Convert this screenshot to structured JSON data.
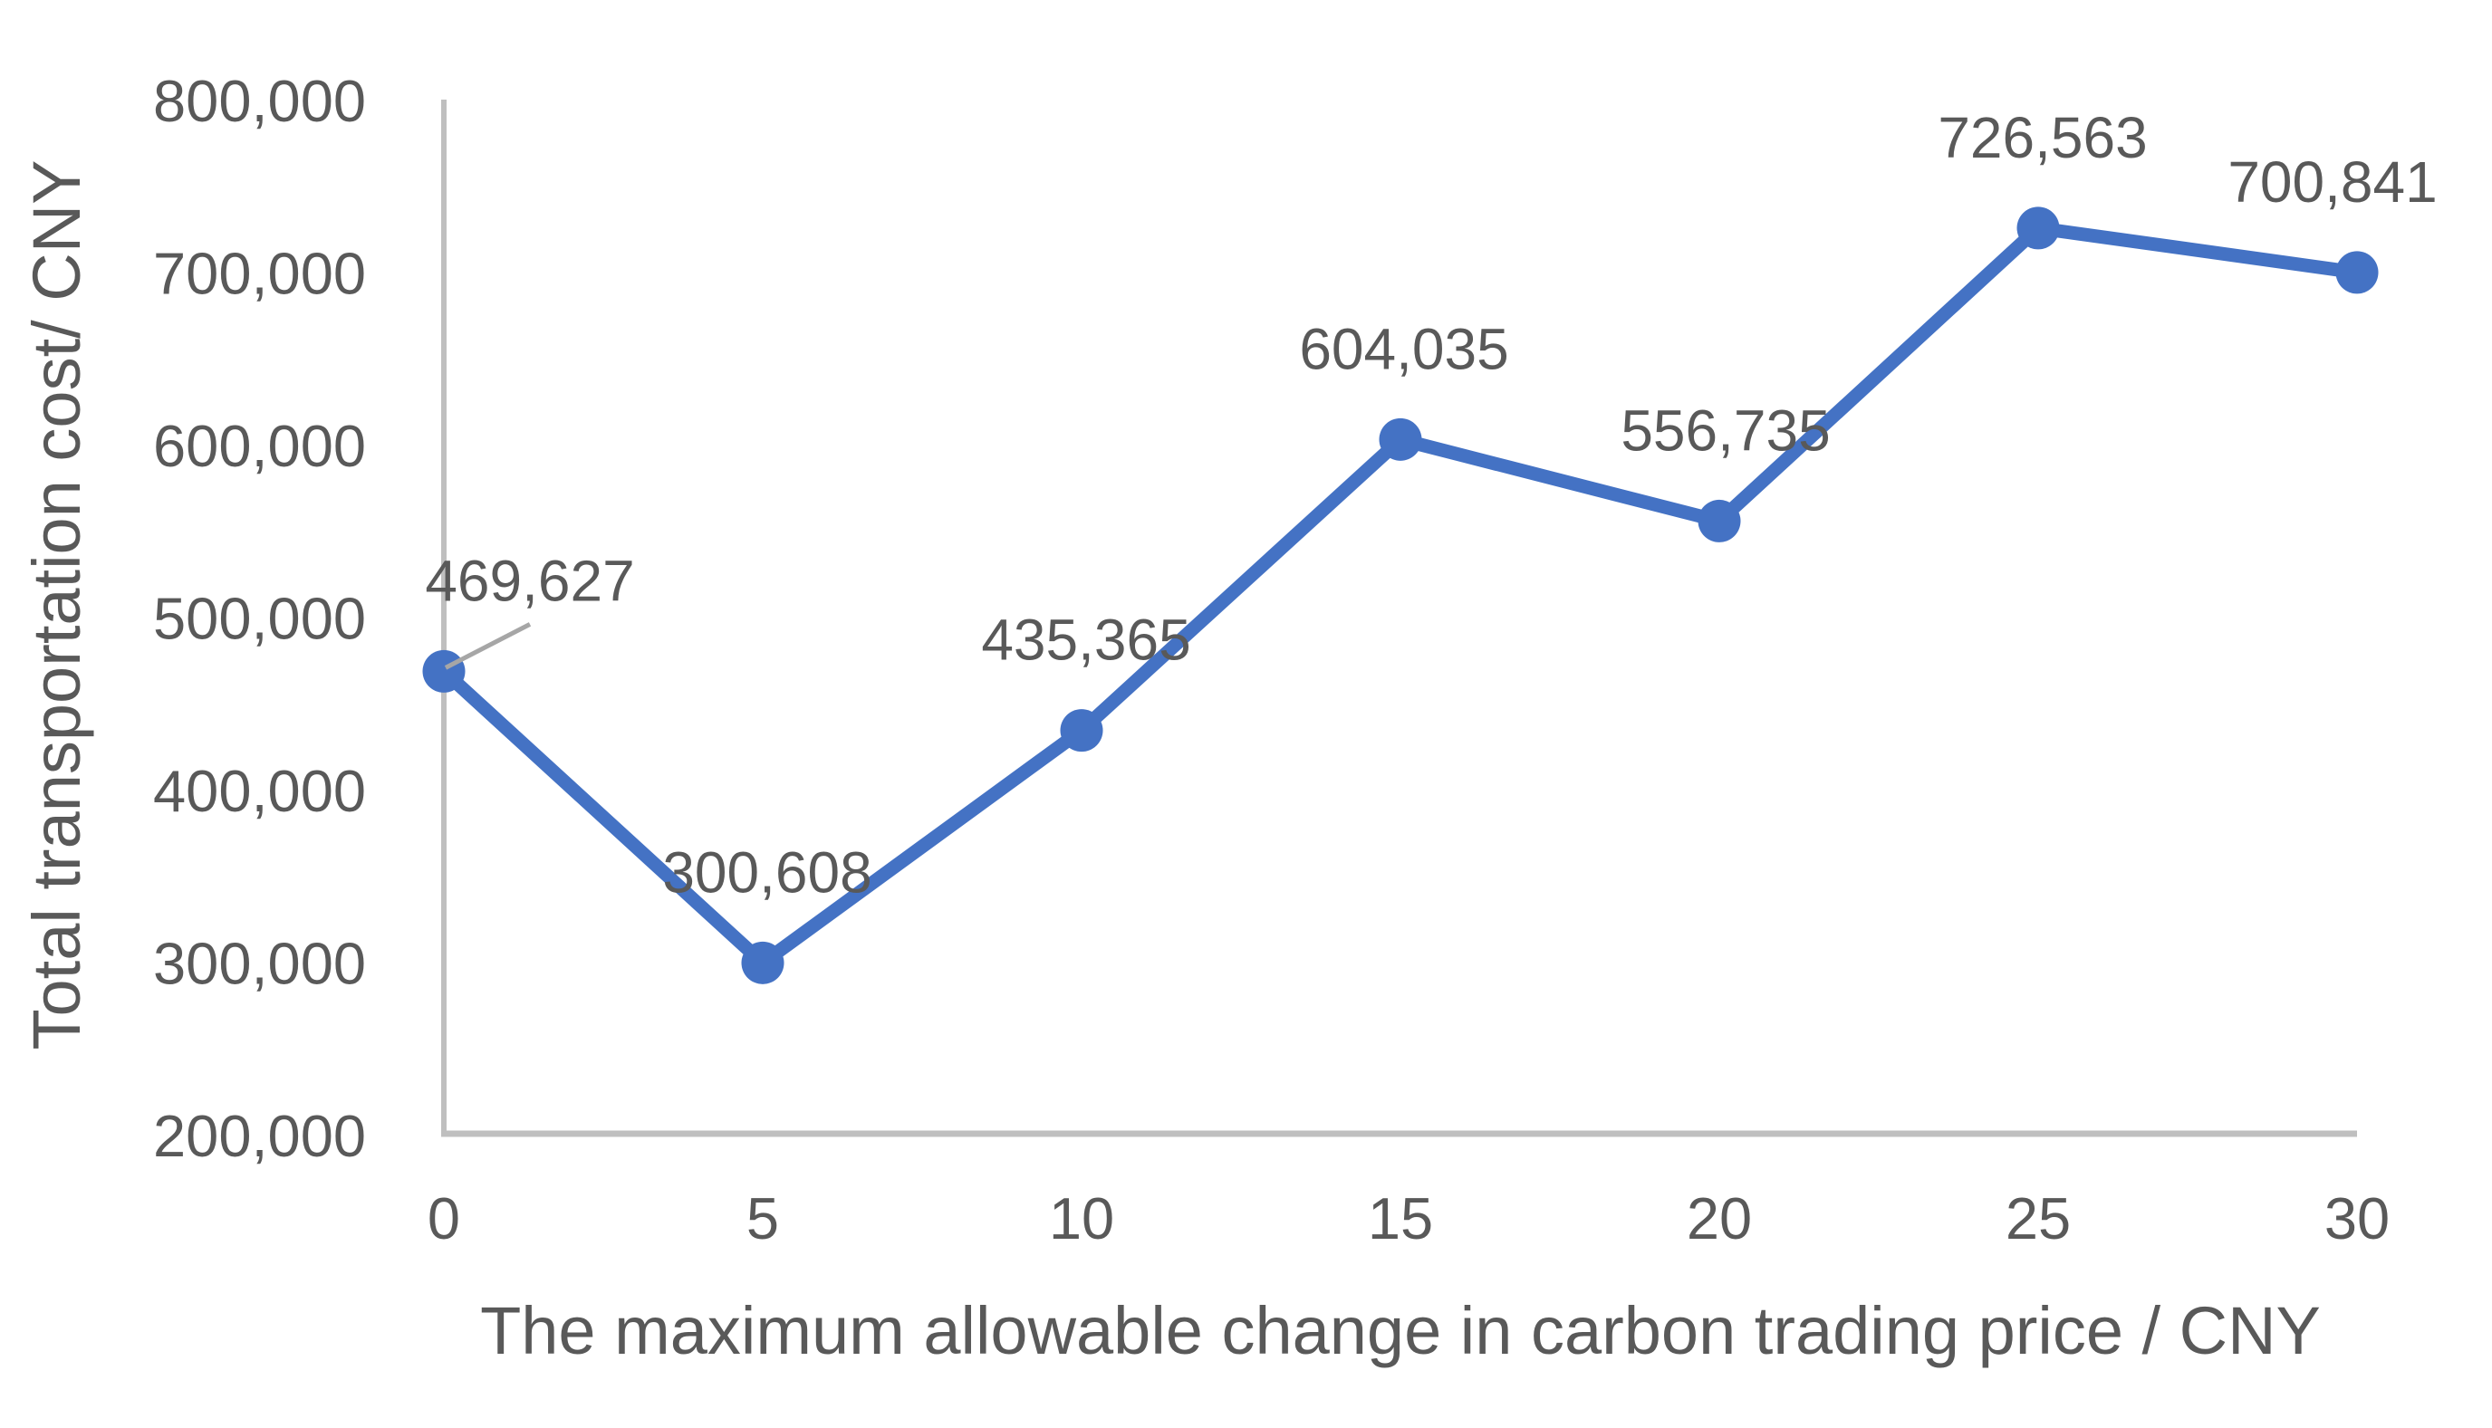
{
  "chart_data": {
    "type": "line",
    "title": "",
    "xlabel": "The maximum allowable change in carbon trading price / CNY",
    "ylabel": "Total transportation cost/ CNY",
    "categories": [
      0,
      5,
      10,
      15,
      20,
      25,
      30
    ],
    "xticks": [
      "0",
      "5",
      "10",
      "15",
      "20",
      "25",
      "30"
    ],
    "yticks": [
      "200,000",
      "300,000",
      "400,000",
      "500,000",
      "600,000",
      "700,000",
      "800,000"
    ],
    "ylim": [
      200000,
      800000
    ],
    "ytick_step": 100000,
    "grid": false,
    "legend": "none",
    "series": [
      {
        "name": "Total transportation cost",
        "values": [
          469627,
          300608,
          435365,
          604035,
          556735,
          726563,
          700841
        ],
        "labels": [
          "469,627",
          "300,608",
          "435,365",
          "604,035",
          "556,735",
          "726,563",
          "700,841"
        ]
      }
    ],
    "colors": {
      "series": "#4472C4",
      "axis_line": "#BFBFBF",
      "text": "#595959",
      "leader_line": "#A6A6A6"
    },
    "label_layout": {
      "dx": [
        95,
        5,
        5,
        4,
        7,
        5,
        -27
      ],
      "dy": -78,
      "leader_point_index": 0
    }
  }
}
